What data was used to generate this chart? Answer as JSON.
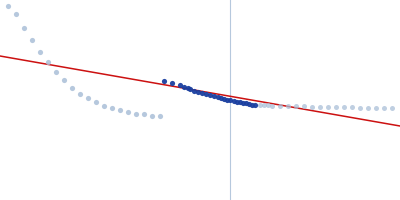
{
  "bg_color": "#ffffff",
  "line_color": "#cc1111",
  "dark_dot_color": "#1a3fa0",
  "light_dot_color": "#aabfd8",
  "vline_color": "#aabfd8",
  "figsize": [
    4.0,
    2.0
  ],
  "dpi": 100,
  "xlim": [
    0.0,
    1.0
  ],
  "ylim": [
    0.0,
    1.0
  ],
  "vline_x": 0.575,
  "red_line": [
    [
      0.0,
      0.72
    ],
    [
      1.0,
      0.37
    ]
  ],
  "light_dots_left": [
    [
      0.02,
      0.97
    ],
    [
      0.04,
      0.93
    ],
    [
      0.06,
      0.86
    ],
    [
      0.08,
      0.8
    ],
    [
      0.1,
      0.74
    ],
    [
      0.12,
      0.69
    ],
    [
      0.14,
      0.64
    ],
    [
      0.16,
      0.6
    ],
    [
      0.18,
      0.56
    ],
    [
      0.2,
      0.53
    ],
    [
      0.22,
      0.51
    ],
    [
      0.24,
      0.49
    ],
    [
      0.26,
      0.47
    ],
    [
      0.28,
      0.46
    ],
    [
      0.3,
      0.45
    ],
    [
      0.32,
      0.44
    ],
    [
      0.34,
      0.43
    ],
    [
      0.36,
      0.43
    ],
    [
      0.38,
      0.42
    ],
    [
      0.4,
      0.42
    ]
  ],
  "dark_dots": [
    [
      0.41,
      0.595
    ],
    [
      0.43,
      0.585
    ],
    [
      0.45,
      0.575
    ],
    [
      0.46,
      0.567
    ],
    [
      0.47,
      0.56
    ],
    [
      0.475,
      0.553
    ],
    [
      0.485,
      0.547
    ],
    [
      0.495,
      0.542
    ],
    [
      0.505,
      0.536
    ],
    [
      0.515,
      0.53
    ],
    [
      0.525,
      0.524
    ],
    [
      0.535,
      0.519
    ],
    [
      0.545,
      0.514
    ],
    [
      0.552,
      0.51
    ],
    [
      0.56,
      0.506
    ],
    [
      0.568,
      0.502
    ],
    [
      0.576,
      0.498
    ],
    [
      0.584,
      0.495
    ],
    [
      0.592,
      0.492
    ],
    [
      0.6,
      0.489
    ],
    [
      0.608,
      0.486
    ],
    [
      0.615,
      0.483
    ],
    [
      0.622,
      0.48
    ],
    [
      0.63,
      0.477
    ],
    [
      0.638,
      0.475
    ]
  ],
  "light_dots_right": [
    [
      0.65,
      0.475
    ],
    [
      0.66,
      0.474
    ],
    [
      0.67,
      0.473
    ],
    [
      0.68,
      0.472
    ],
    [
      0.7,
      0.471
    ],
    [
      0.72,
      0.47
    ],
    [
      0.74,
      0.469
    ],
    [
      0.76,
      0.468
    ],
    [
      0.78,
      0.467
    ],
    [
      0.8,
      0.466
    ],
    [
      0.82,
      0.465
    ],
    [
      0.84,
      0.464
    ],
    [
      0.86,
      0.463
    ],
    [
      0.88,
      0.463
    ],
    [
      0.9,
      0.462
    ],
    [
      0.92,
      0.462
    ],
    [
      0.94,
      0.461
    ],
    [
      0.96,
      0.461
    ],
    [
      0.98,
      0.46
    ]
  ]
}
